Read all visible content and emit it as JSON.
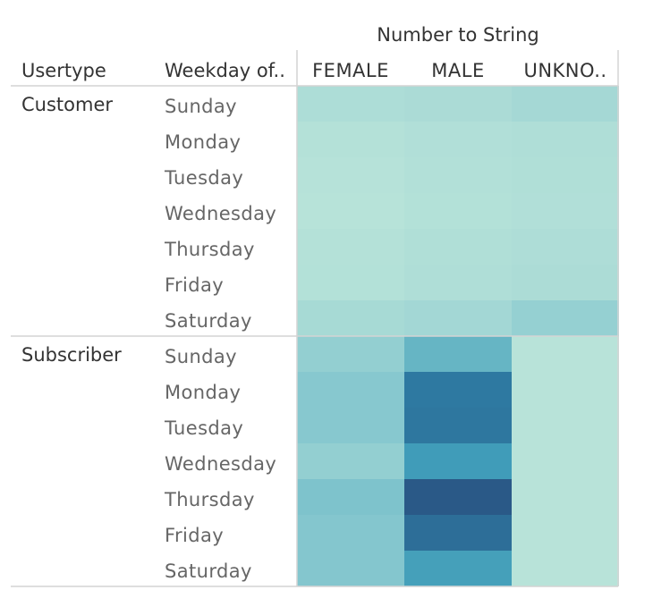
{
  "chart_data": {
    "type": "heatmap",
    "column_group_title": "Number to String",
    "row_headers": [
      "Usertype",
      "Weekday of.."
    ],
    "columns": [
      "FEMALE",
      "MALE",
      "UNKNO.."
    ],
    "groups": [
      {
        "name": "Customer",
        "rows": [
          {
            "label": "Sunday",
            "values": [
              0.14,
              0.16,
              0.19
            ]
          },
          {
            "label": "Monday",
            "values": [
              0.07,
              0.1,
              0.12
            ]
          },
          {
            "label": "Tuesday",
            "values": [
              0.06,
              0.09,
              0.11
            ]
          },
          {
            "label": "Wednesday",
            "values": [
              0.05,
              0.08,
              0.1
            ]
          },
          {
            "label": "Thursday",
            "values": [
              0.07,
              0.11,
              0.13
            ]
          },
          {
            "label": "Friday",
            "values": [
              0.08,
              0.12,
              0.15
            ]
          },
          {
            "label": "Saturday",
            "values": [
              0.18,
              0.2,
              0.27
            ]
          }
        ]
      },
      {
        "name": "Subscriber",
        "rows": [
          {
            "label": "Sunday",
            "values": [
              0.28,
              0.52,
              0.04
            ]
          },
          {
            "label": "Monday",
            "values": [
              0.34,
              0.86,
              0.04
            ]
          },
          {
            "label": "Tuesday",
            "values": [
              0.34,
              0.87,
              0.04
            ]
          },
          {
            "label": "Wednesday",
            "values": [
              0.28,
              0.66,
              0.04
            ]
          },
          {
            "label": "Thursday",
            "values": [
              0.39,
              1.0,
              0.04
            ]
          },
          {
            "label": "Friday",
            "values": [
              0.36,
              0.91,
              0.04
            ]
          },
          {
            "label": "Saturday",
            "values": [
              0.36,
              0.64,
              0.04
            ]
          }
        ]
      }
    ],
    "color_scale": [
      "#bce6da",
      "#aadbd6",
      "#88c9cf",
      "#6cb8c6",
      "#3e9bb8",
      "#2f7fa6",
      "#2a5987"
    ],
    "grid": false
  }
}
